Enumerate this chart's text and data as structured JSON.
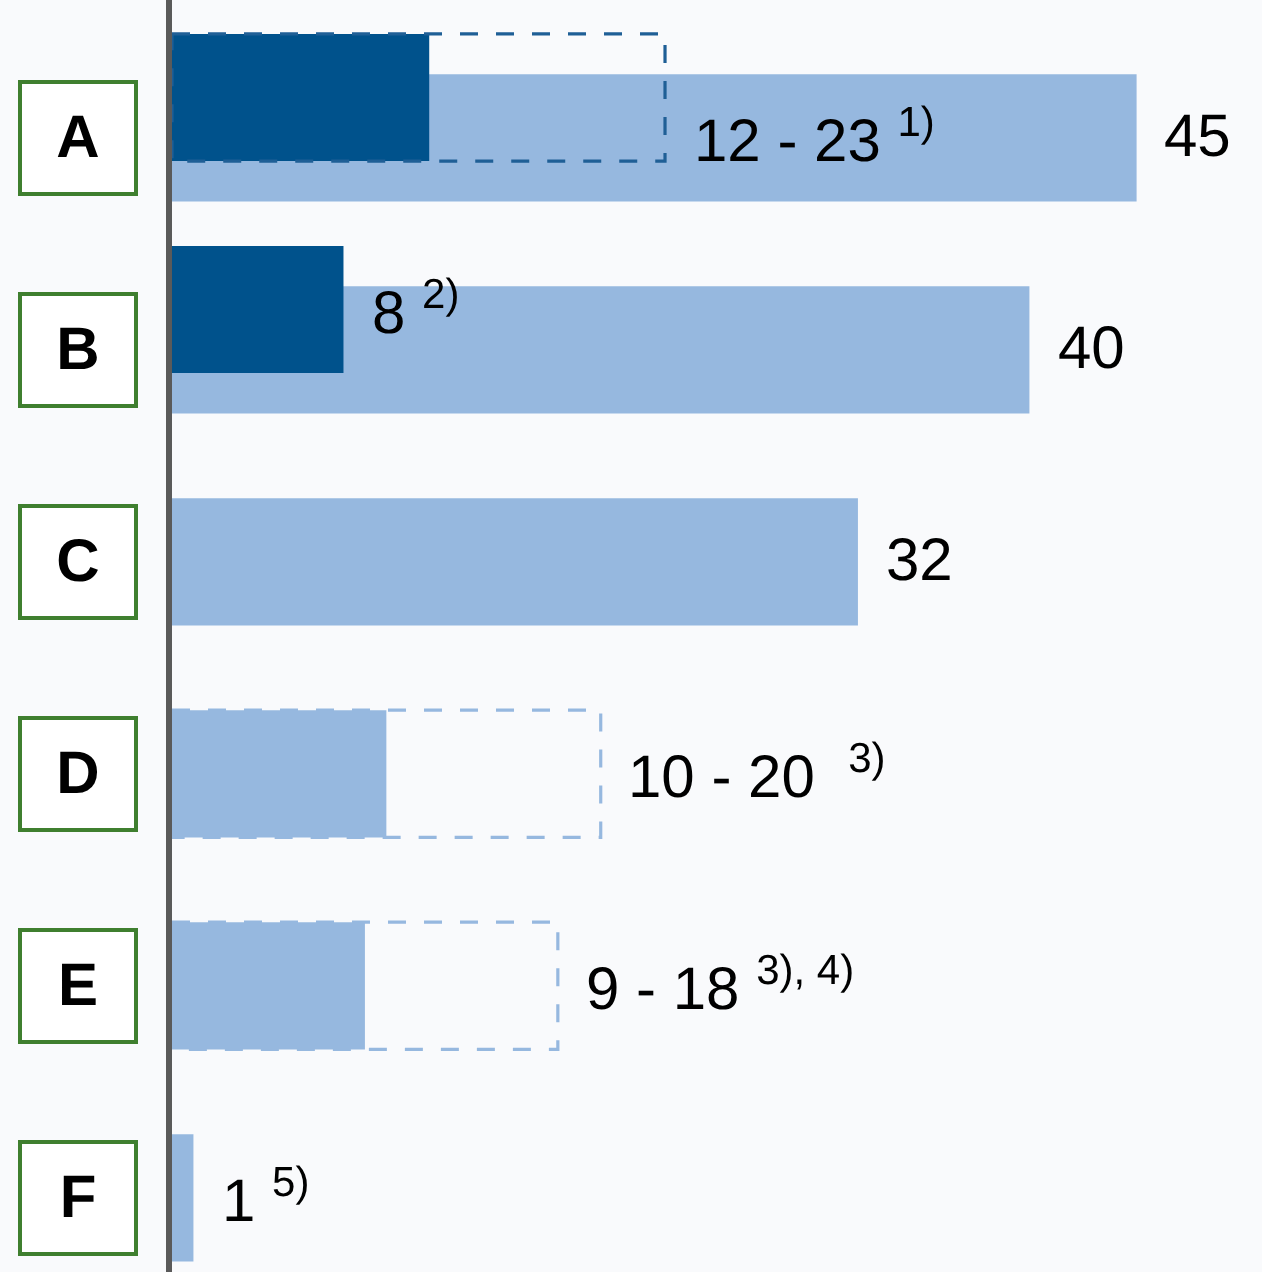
{
  "chart_data": {
    "type": "bar",
    "orientation": "horizontal",
    "categories": [
      "A",
      "B",
      "C",
      "D",
      "E",
      "F"
    ],
    "grid": false,
    "series": [
      {
        "color": "#96b8df",
        "values": [
          45,
          40,
          32,
          10,
          9,
          1
        ],
        "value_labels": [
          "45",
          "40",
          "32",
          null,
          null,
          "1 $^{5)}$"
        ]
      },
      {
        "color": "#96b8df",
        "line_style": "dashed",
        "values": [
          null,
          null,
          null,
          20,
          18,
          null
        ]
      },
      {
        "color": "#1f5f96",
        "line_style": "dashed",
        "values": [
          23,
          null,
          null,
          null,
          null,
          null
        ]
      },
      {
        "color": "#00528c",
        "values": [
          12,
          8,
          null,
          null,
          null,
          null
        ],
        "value_labels": [
          null,
          "8 $^{2)}$",
          null,
          null,
          null,
          null
        ]
      }
    ],
    "annotations": [
      {
        "text": "12 - 23 $^{1)}$",
        "x": 23,
        "y": "A"
      },
      {
        "text": "10 - 20  $^{3)}$",
        "x": 20,
        "y": "D"
      },
      {
        "text": "9 - 18 $^{3), 4)}$",
        "x": 18,
        "y": "E"
      }
    ]
  }
}
